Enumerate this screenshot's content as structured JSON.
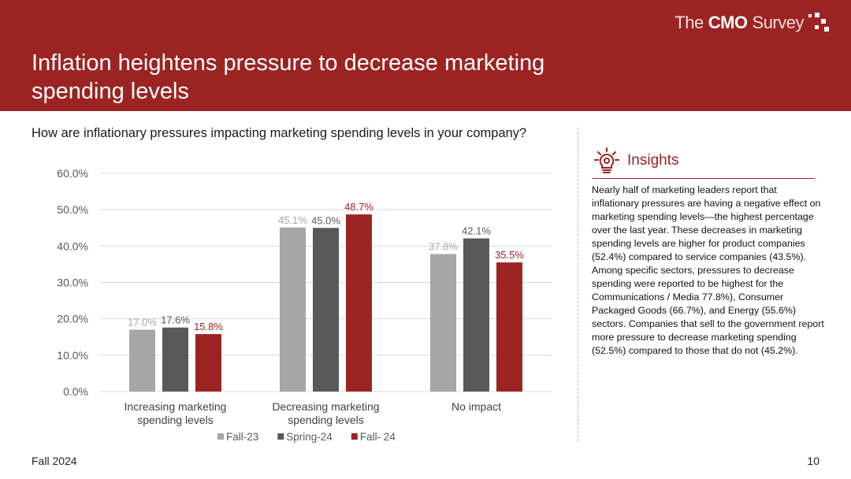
{
  "header": {
    "logo": {
      "prefix": "The",
      "bold": "CMO",
      "suffix": "Survey",
      "mark_icon": "dot-grid-icon"
    },
    "title": "Inflation heightens pressure to decrease marketing spending levels"
  },
  "question": "How are inflationary pressures impacting marketing spending levels in your company?",
  "chart_data": {
    "type": "bar",
    "categories": [
      "Increasing marketing spending levels",
      "Decreasing marketing spending levels",
      "No impact"
    ],
    "category_lines": [
      [
        "Increasing marketing",
        "spending levels"
      ],
      [
        "Decreasing marketing",
        "spending levels"
      ],
      [
        "No impact"
      ]
    ],
    "series": [
      {
        "name": "Fall-23",
        "values": [
          17.0,
          45.1,
          37.8
        ],
        "labels": [
          "17.0%",
          "45.1%",
          "37.8%"
        ],
        "color": "#a6a6a6",
        "label_color": "#a6a6a6"
      },
      {
        "name": "Spring-24",
        "values": [
          17.6,
          45.0,
          42.1
        ],
        "labels": [
          "17.6%",
          "45.0%",
          "42.1%"
        ],
        "color": "#595959",
        "label_color": "#595959"
      },
      {
        "name": "Fall- 24",
        "values": [
          15.8,
          48.7,
          35.5
        ],
        "labels": [
          "15.8%",
          "48.7%",
          "35.5%"
        ],
        "color": "#9b2423",
        "label_color": "#9b2423"
      }
    ],
    "ylim": [
      0,
      60
    ],
    "yticks": [
      0,
      10,
      20,
      30,
      40,
      50,
      60
    ],
    "ytick_labels": [
      "0.0%",
      "10.0%",
      "20.0%",
      "30.0%",
      "40.0%",
      "50.0%",
      "60.0%"
    ],
    "grid": true,
    "legend": "bottom-center"
  },
  "insights": {
    "icon": "lightbulb-gear-icon",
    "title": "Insights",
    "body": "Nearly half of marketing leaders report that inflationary pressures are having a negative effect on marketing spending levels—the highest percentage over the last year. These decreases in marketing spending levels are higher for product companies (52.4%) compared to service companies (43.5%). Among specific sectors, pressures to decrease spending were reported to be highest for the Communications / Media 77.8%), Consumer Packaged Goods (66.7%), and Energy (55.6%) sectors. Companies that sell to the government report more pressure to decrease marketing spending (52.5%) compared to those that do not (45.2%)."
  },
  "footer": {
    "left": "Fall 2024",
    "page": "10"
  },
  "colors": {
    "brand": "#9b2423",
    "grid": "#d9d9d9"
  }
}
